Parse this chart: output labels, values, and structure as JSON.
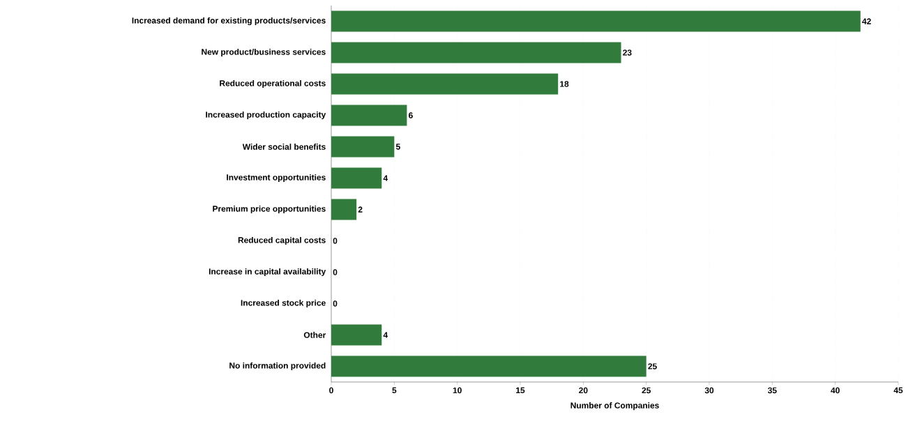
{
  "chart_data": {
    "type": "bar",
    "orientation": "horizontal",
    "xlabel": "Number of Companies",
    "categories": [
      "Increased demand for existing products/services",
      "New product/business services",
      "Reduced operational costs",
      "Increased production capacity",
      "Wider social benefits",
      "Investment opportunities",
      "Premium price opportunities",
      "Reduced capital costs",
      "Increase in capital availability",
      "Increased stock price",
      "Other",
      "No information provided"
    ],
    "values": [
      42,
      23,
      18,
      6,
      5,
      4,
      2,
      0,
      0,
      0,
      4,
      25
    ],
    "color": "#317c3c",
    "xlim": [
      0,
      45
    ],
    "xticks": [
      0,
      5,
      10,
      15,
      20,
      25,
      30,
      35,
      40,
      45
    ],
    "grid": "x",
    "data_labels": true
  }
}
